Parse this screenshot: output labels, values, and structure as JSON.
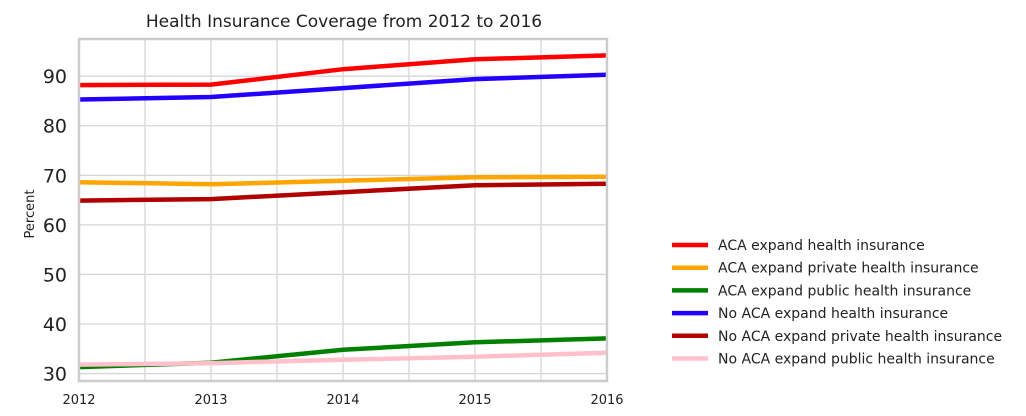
{
  "chart_data": {
    "type": "line",
    "title": "Health Insurance Coverage from 2012 to 2016",
    "xlabel": "",
    "ylabel": "Percent",
    "x": [
      2012,
      2013,
      2014,
      2015,
      2016
    ],
    "xlim": [
      2012,
      2016
    ],
    "ylim": [
      28.5,
      97.5
    ],
    "xticks": [
      2012,
      2013,
      2014,
      2015,
      2016
    ],
    "yticks": [
      30,
      40,
      50,
      60,
      70,
      80,
      90
    ],
    "grid": true,
    "legend_position": "outside-lower-right",
    "series": [
      {
        "name": "ACA expand health insurance",
        "color": "#ff0000",
        "values": [
          88.2,
          88.3,
          91.4,
          93.4,
          94.2
        ]
      },
      {
        "name": "ACA expand private health insurance",
        "color": "#ffa500",
        "values": [
          68.6,
          68.2,
          68.9,
          69.6,
          69.7
        ]
      },
      {
        "name": "ACA expand public health insurance",
        "color": "#008000",
        "values": [
          31.3,
          32.2,
          34.8,
          36.3,
          37.1
        ]
      },
      {
        "name": "No ACA expand health insurance",
        "color": "#2200ff",
        "values": [
          85.3,
          85.8,
          87.6,
          89.4,
          90.3
        ]
      },
      {
        "name": "No ACA expand private health insurance",
        "color": "#b00000",
        "values": [
          64.9,
          65.2,
          66.6,
          68.0,
          68.3
        ]
      },
      {
        "name": "No ACA expand public health insurance",
        "color": "#ffc0cb",
        "values": [
          31.8,
          32.1,
          32.8,
          33.4,
          34.2
        ]
      }
    ]
  }
}
